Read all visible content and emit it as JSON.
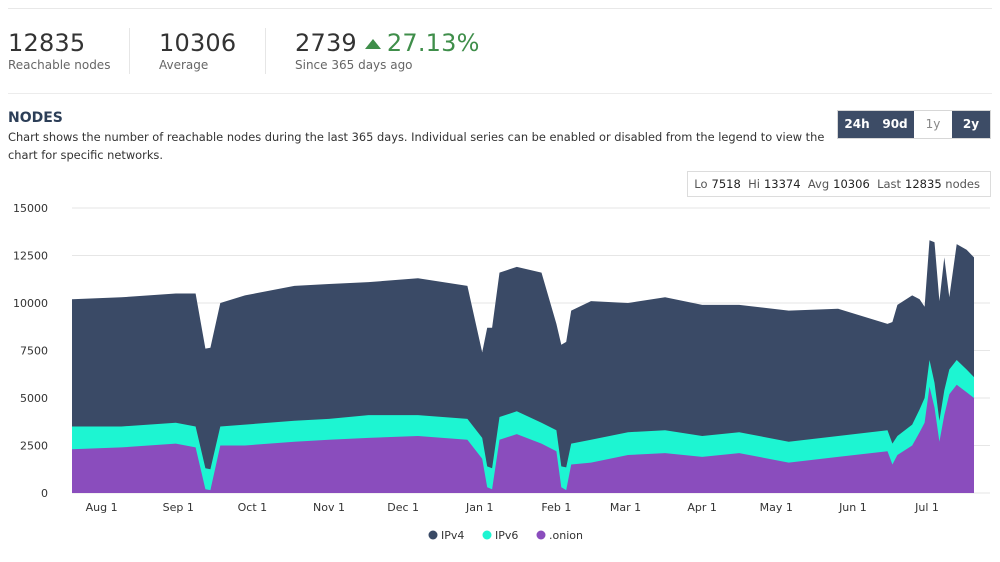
{
  "stats": [
    {
      "value": "12835",
      "label": "Reachable nodes"
    },
    {
      "value": "10306",
      "label": "Average"
    },
    {
      "value": "2739",
      "change": "27.13%",
      "label": "Since 365 days ago"
    }
  ],
  "section": {
    "title": "NODES",
    "description": "Chart shows the number of reachable nodes during the last 365 days. Individual series can be enabled or disabled from the legend to view the chart for specific networks."
  },
  "range_buttons": [
    {
      "label": "24h",
      "active": true
    },
    {
      "label": "90d",
      "active": true
    },
    {
      "label": "1y",
      "active": false
    },
    {
      "label": "2y",
      "active": true
    }
  ],
  "summary": {
    "lo_label": "Lo",
    "lo": "7518",
    "hi_label": "Hi",
    "hi": "13374",
    "avg_label": "Avg",
    "avg": "10306",
    "last_label": "Last",
    "last": "12835",
    "unit": "nodes"
  },
  "colors": {
    "ipv4": "#3a4a66",
    "ipv6": "#1df5d2",
    "onion": "#8a4dbd",
    "up": "#3f8e4a"
  },
  "chart_data": {
    "type": "area",
    "stacked": true,
    "ylim": [
      0,
      15000
    ],
    "yticks": [
      0,
      2500,
      5000,
      7500,
      10000,
      12500,
      15000
    ],
    "xticks": [
      {
        "label": "Aug 1",
        "day": 12
      },
      {
        "label": "Sep 1",
        "day": 43
      },
      {
        "label": "Oct 1",
        "day": 73
      },
      {
        "label": "Nov 1",
        "day": 104
      },
      {
        "label": "Dec 1",
        "day": 134
      },
      {
        "label": "Jan 1",
        "day": 165
      },
      {
        "label": "Feb 1",
        "day": 196
      },
      {
        "label": "Mar 1",
        "day": 224
      },
      {
        "label": "Apr 1",
        "day": 255
      },
      {
        "label": "May 1",
        "day": 285
      },
      {
        "label": "Jun 1",
        "day": 316
      },
      {
        "label": "Jul 1",
        "day": 346
      }
    ],
    "x": [
      0,
      20,
      42,
      50,
      54,
      56,
      60,
      70,
      90,
      104,
      120,
      140,
      160,
      166,
      168,
      170,
      173,
      180,
      190,
      196,
      198,
      200,
      202,
      210,
      225,
      240,
      255,
      270,
      290,
      310,
      330,
      332,
      334,
      340,
      343,
      345,
      347,
      349,
      351,
      353,
      355,
      358,
      362,
      365
    ],
    "series": [
      {
        "name": ".onion",
        "values": [
          2300,
          2400,
          2600,
          2400,
          200,
          150,
          2500,
          2500,
          2700,
          2800,
          2900,
          3000,
          2800,
          1800,
          300,
          200,
          2800,
          3100,
          2600,
          2200,
          300,
          150,
          1500,
          1600,
          2000,
          2100,
          1900,
          2100,
          1600,
          1900,
          2200,
          1500,
          2000,
          2500,
          3200,
          3700,
          5600,
          4500,
          2700,
          4100,
          5200,
          5700,
          5300,
          5000
        ]
      },
      {
        "name": "IPv6",
        "values": [
          1200,
          1100,
          1100,
          1100,
          1100,
          1100,
          1000,
          1100,
          1100,
          1100,
          1200,
          1100,
          1100,
          1100,
          1100,
          1100,
          1200,
          1200,
          1100,
          1100,
          1100,
          1200,
          1100,
          1200,
          1200,
          1200,
          1100,
          1100,
          1100,
          1100,
          1100,
          1100,
          1000,
          1100,
          1200,
          1300,
          1400,
          1300,
          1100,
          1300,
          1300,
          1300,
          1200,
          1100
        ]
      },
      {
        "name": "IPv4",
        "values": [
          6700,
          6800,
          6800,
          7000,
          6300,
          6400,
          6500,
          6800,
          7100,
          7100,
          7000,
          7200,
          7000,
          4500,
          7300,
          7400,
          7600,
          7600,
          7900,
          5600,
          6400,
          6600,
          7000,
          7300,
          6800,
          7000,
          6900,
          6700,
          6900,
          6700,
          5600,
          6400,
          6900,
          6800,
          5800,
          4800,
          6300,
          7400,
          6300,
          7000,
          3800,
          6100,
          6300,
          6300
        ]
      }
    ]
  },
  "legend": [
    {
      "name": "IPv4",
      "color": "#3a4a66"
    },
    {
      "name": "IPv6",
      "color": "#1df5d2"
    },
    {
      "name": ".onion",
      "color": "#8a4dbd"
    }
  ]
}
